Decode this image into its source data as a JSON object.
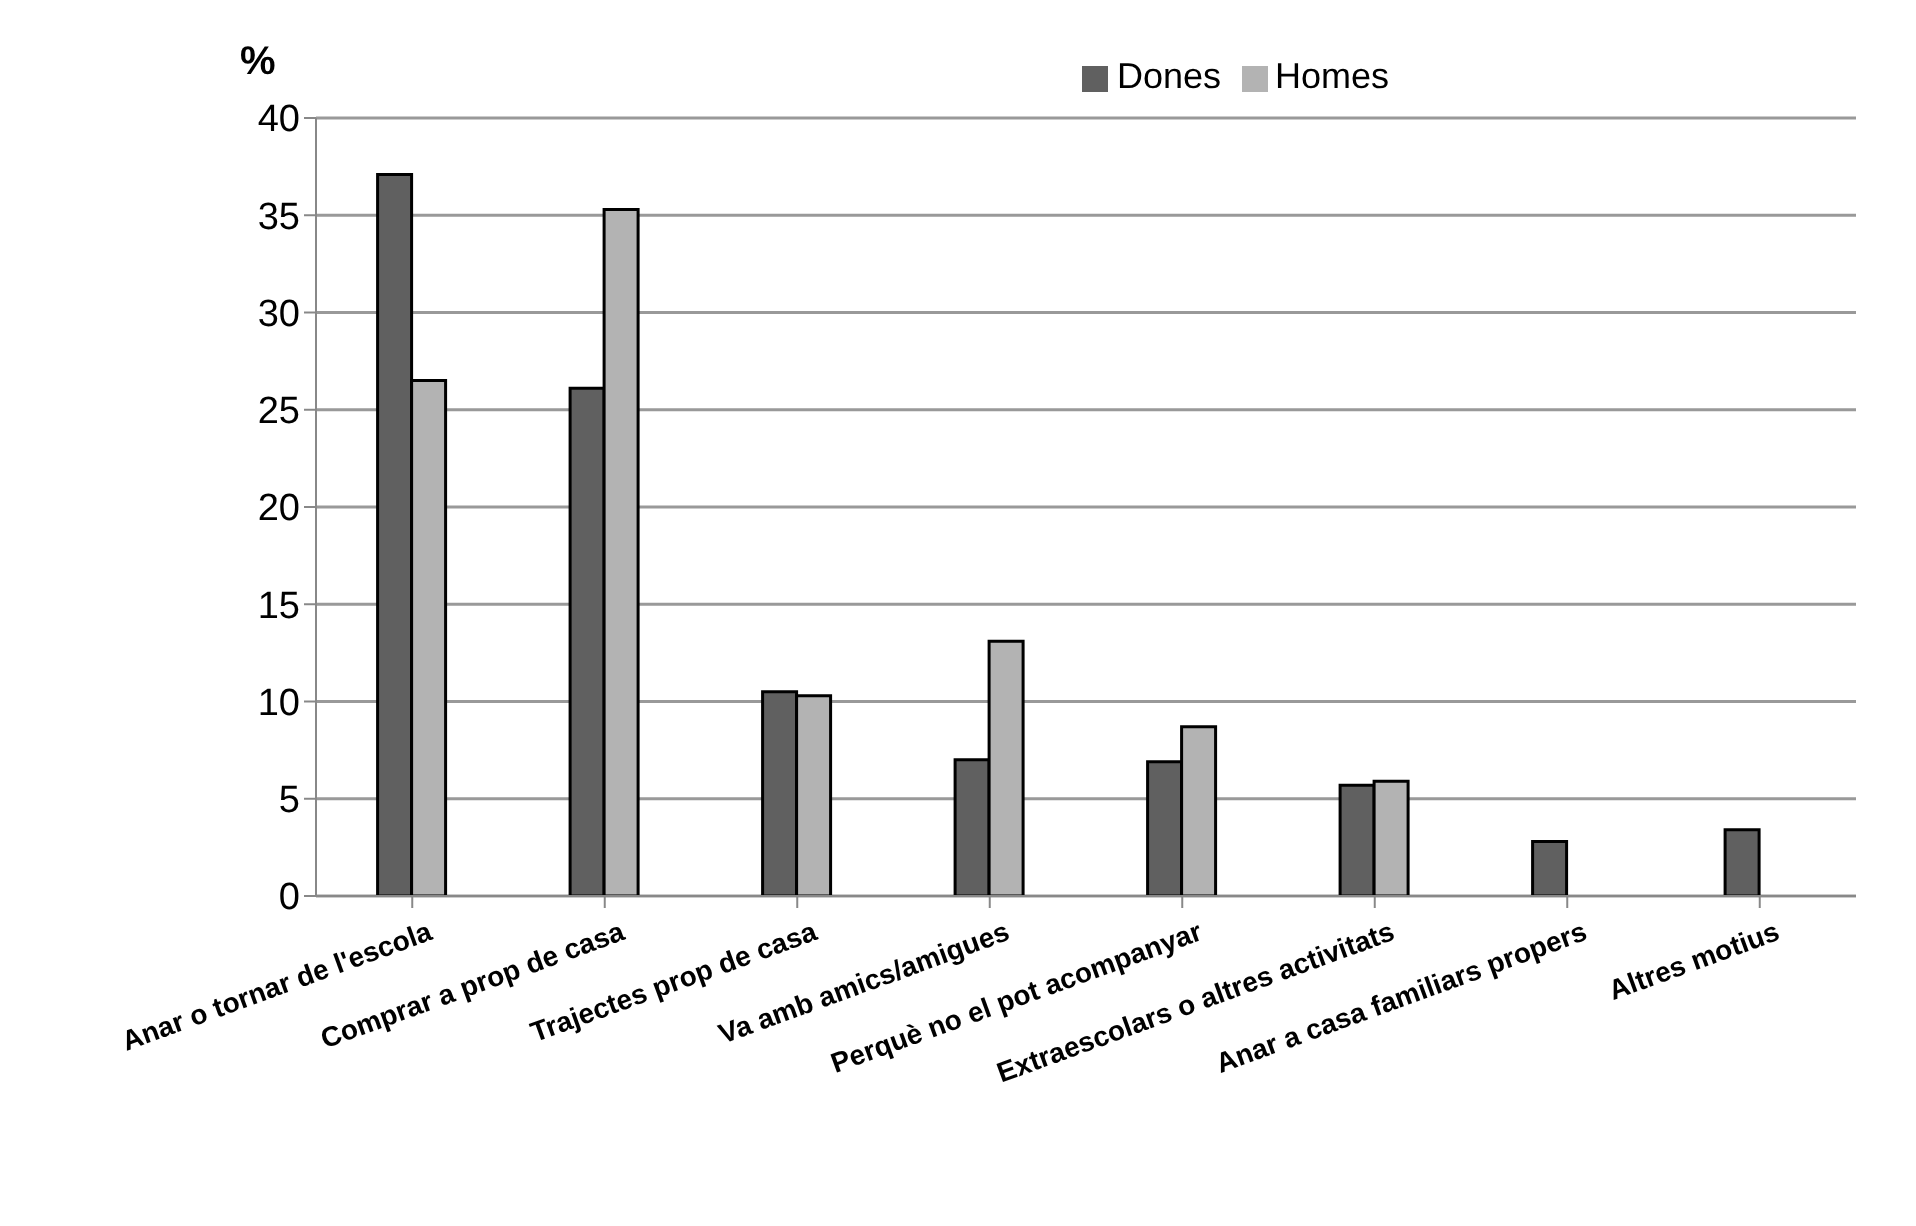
{
  "chart_data": {
    "type": "bar",
    "ylabel": "%",
    "categories": [
      "Anar o tornar de l'escola",
      "Comprar a prop de casa",
      "Trajectes prop de casa",
      "Va amb amics/amigues",
      "Perquè no el pot acompanyar",
      "Extraescolars o altres activitats",
      "Anar a casa familiars propers",
      "Altres motius"
    ],
    "series": [
      {
        "name": "Dones",
        "color": "#606060",
        "values": [
          37.1,
          26.1,
          10.5,
          7.0,
          6.9,
          5.7,
          2.8,
          3.4
        ]
      },
      {
        "name": "Homes",
        "color": "#b3b3b3",
        "values": [
          26.5,
          35.3,
          10.3,
          13.1,
          8.7,
          5.9,
          null,
          null
        ]
      }
    ],
    "ylim": [
      0,
      40
    ],
    "yticks": [
      0,
      5,
      10,
      15,
      20,
      25,
      30,
      35,
      40
    ],
    "grid": "y",
    "legend": "top"
  }
}
